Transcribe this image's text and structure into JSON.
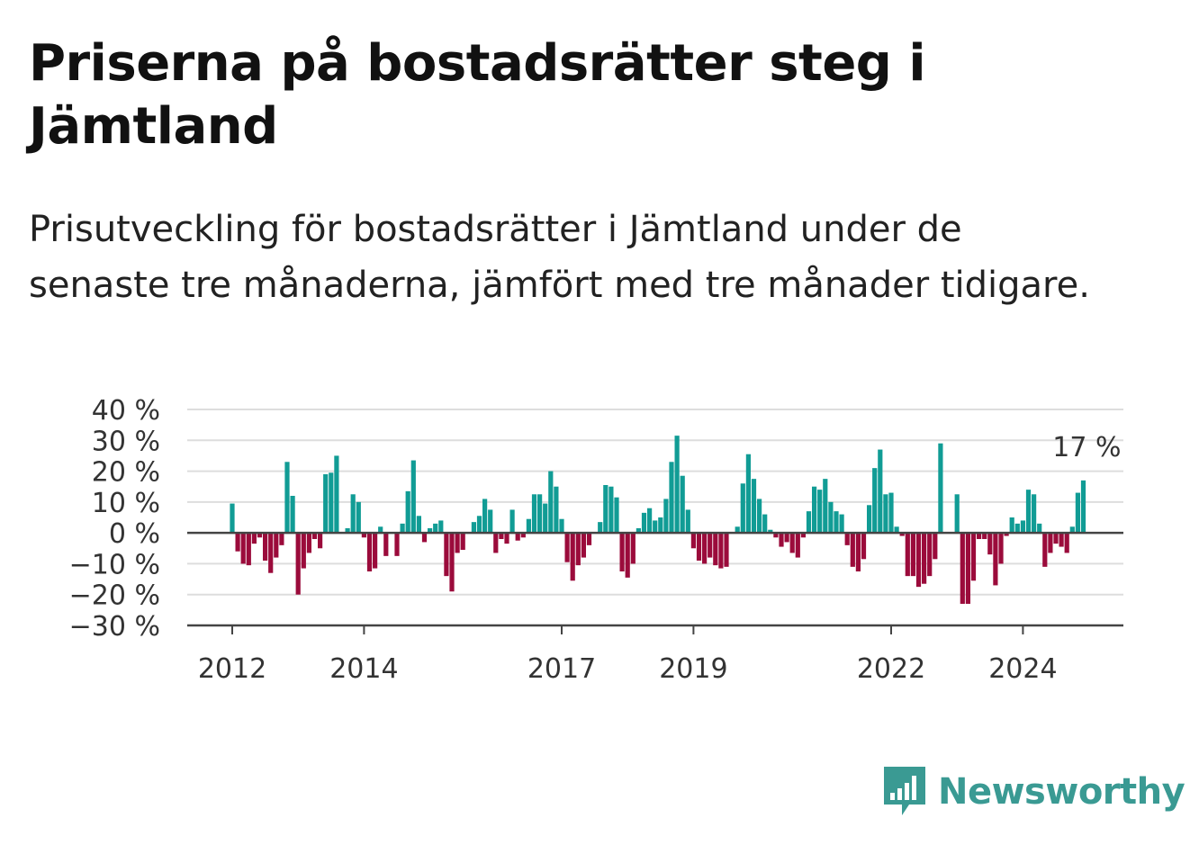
{
  "header": {
    "title": "Priserna på bostadsrätter steg i Jämtland",
    "subtitle": "Prisutveckling för bostadsrätter i Jämtland under de senaste tre månaderna, jämfört med tre månader tidigare."
  },
  "brand": {
    "name": "Newsworthy",
    "color": "#3a9a93"
  },
  "colors": {
    "positive": "#119c95",
    "negative": "#9b0b3b",
    "grid": "#dddddd",
    "zero_line": "#444444"
  },
  "chart_data": {
    "type": "bar",
    "title": "Priserna på bostadsrätter steg i Jämtland",
    "subtitle": "Prisutveckling för bostadsrätter i Jämtland under de senaste tre månaderna, jämfört med tre månader tidigare.",
    "xlabel": "",
    "ylabel": "",
    "y_unit": "%",
    "ylim": [
      -30,
      40
    ],
    "yticks": [
      40,
      30,
      20,
      10,
      0,
      -10,
      -20,
      -30
    ],
    "ytick_labels": [
      "40 %",
      "30 %",
      "20 %",
      "10 %",
      "0 %",
      "−10 %",
      "−20 %",
      "−30 %"
    ],
    "xtick_labels": [
      "2012",
      "2014",
      "2017",
      "2019",
      "2022",
      "2024"
    ],
    "grid": true,
    "annotation": {
      "label": "17 %",
      "for": "last_value"
    },
    "start": "2012-01",
    "frequency": "monthly",
    "values": [
      9.5,
      -6,
      -10,
      -10.5,
      -3.5,
      -1.5,
      -9,
      -13,
      -8,
      -4,
      23,
      12,
      -20,
      -11.5,
      -6.5,
      -2,
      -5,
      19,
      19.5,
      25,
      null,
      1.5,
      12.5,
      10,
      -1.5,
      -12.5,
      -11.5,
      2,
      -7.5,
      0,
      -7.5,
      3,
      13.5,
      23.5,
      5.5,
      -3,
      1.5,
      3,
      4,
      -14,
      -19,
      -6.5,
      -5.5,
      null,
      3.5,
      5.5,
      11,
      7.5,
      -6.5,
      -2,
      -3.5,
      7.5,
      -2.5,
      -1.5,
      4.5,
      12.5,
      12.5,
      9.5,
      20,
      15,
      4.5,
      -9.5,
      -15.5,
      -10.5,
      -8,
      -4,
      null,
      3.5,
      15.5,
      15,
      11.5,
      -12.5,
      -14.5,
      -10,
      1.5,
      6.5,
      8,
      4,
      5,
      11,
      23,
      31.5,
      18.5,
      7.5,
      -5,
      -9,
      -10,
      -8,
      -10.5,
      -11.5,
      -11,
      null,
      2,
      16,
      25.5,
      17.5,
      11,
      6,
      1,
      -1.5,
      -4.5,
      -3,
      -6.5,
      -8,
      -1.5,
      7,
      15,
      14,
      17.5,
      10,
      7,
      6,
      -4,
      -11,
      -12.5,
      -8.5,
      9,
      21,
      27,
      12.5,
      13,
      2,
      -1,
      -14,
      -14,
      -17.5,
      -16.5,
      -14,
      -8.5,
      29,
      null,
      null,
      12.5,
      -23,
      -23,
      -15.5,
      -2,
      -2,
      -7,
      -17,
      -10,
      -1,
      5,
      3,
      4,
      14,
      12.5,
      3,
      -11,
      -6.5,
      -3.5,
      -4.5,
      -6.5,
      2,
      13,
      17
    ]
  }
}
